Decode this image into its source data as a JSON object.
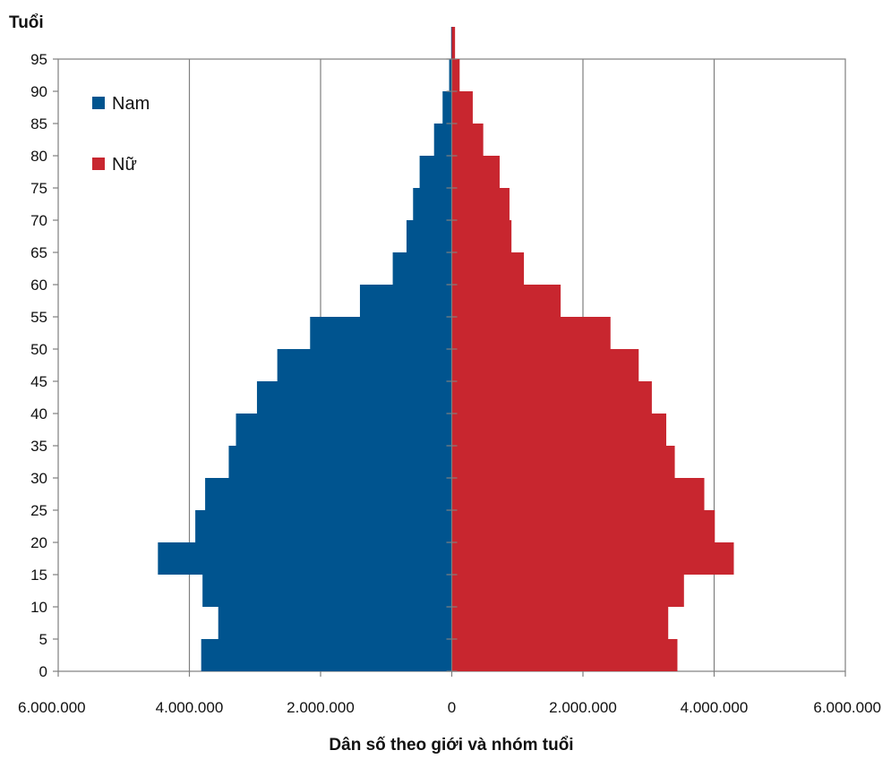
{
  "chart_data": {
    "type": "bar",
    "orientation": "horizontal",
    "ylabel": "Tuổi",
    "xlabel": "Dân số theo giới và nhóm tuổi",
    "x_ticks": [
      "6.000.000",
      "4.000.000",
      "2.000.000",
      "0",
      "2.000.000",
      "4.000.000",
      "6.000.000"
    ],
    "y_ticks": [
      "0",
      "5",
      "10",
      "15",
      "20",
      "25",
      "30",
      "35",
      "40",
      "45",
      "50",
      "55",
      "60",
      "65",
      "70",
      "75",
      "80",
      "85",
      "90",
      "95"
    ],
    "xlim": [
      -6000000,
      6000000
    ],
    "ylim": [
      0,
      95
    ],
    "grid": "vertical",
    "legend_position": "top-left",
    "categories": [
      0,
      5,
      10,
      15,
      20,
      25,
      30,
      35,
      40,
      45,
      50,
      55,
      60,
      65,
      70,
      75,
      80,
      85,
      90,
      95
    ],
    "series": [
      {
        "name": "Nam",
        "color": "#00548f",
        "values": [
          3820000,
          3560000,
          3800000,
          4480000,
          3910000,
          3760000,
          3400000,
          3290000,
          2970000,
          2660000,
          2160000,
          1400000,
          900000,
          690000,
          590000,
          490000,
          270000,
          140000,
          40000,
          10000
        ]
      },
      {
        "name": "Nữ",
        "color": "#c8262f",
        "values": [
          3440000,
          3300000,
          3540000,
          4300000,
          4010000,
          3850000,
          3400000,
          3270000,
          3050000,
          2850000,
          2420000,
          1660000,
          1100000,
          910000,
          880000,
          730000,
          480000,
          320000,
          120000,
          50000
        ]
      }
    ]
  }
}
